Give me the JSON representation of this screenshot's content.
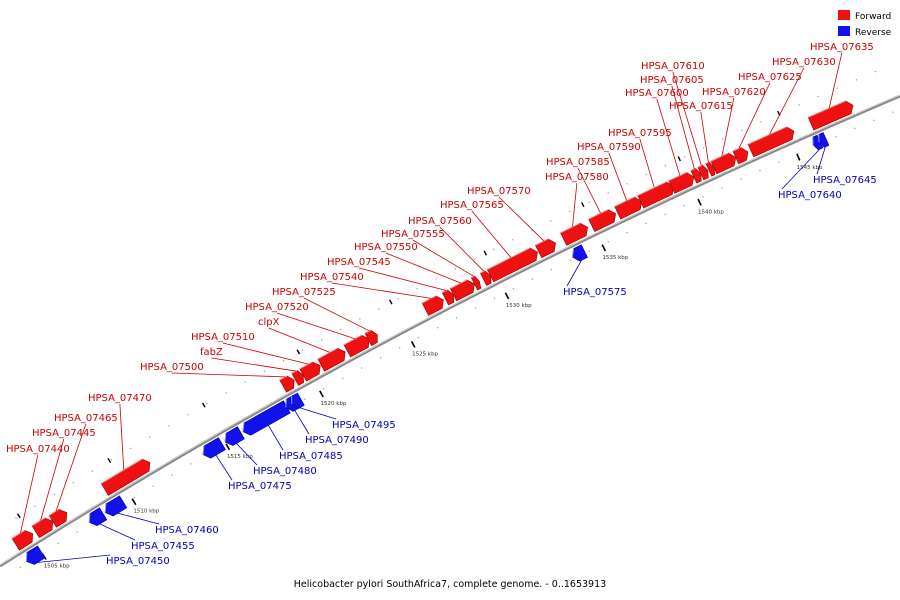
{
  "colors": {
    "forward": "#ee1111",
    "reverse": "#1111ee",
    "axis": "#888888",
    "label_forward": "#cc0000",
    "label_reverse": "#0000bb"
  },
  "legend": [
    {
      "label": "Forward",
      "strand": "forward"
    },
    {
      "label": "Reverse",
      "strand": "reverse"
    }
  ],
  "caption": "Helicobacter pylori SouthAfrica7, complete genome. - 0..1653913",
  "ticks": [
    "1505 kbp",
    "1510 kbp",
    "1515 kbp",
    "1520 kbp",
    "1525 kbp",
    "1530 kbp",
    "1535 kbp",
    "1540 kbp",
    "1545 kbp"
  ],
  "genes": [
    {
      "name": "HPSA_07440",
      "strand": "forward"
    },
    {
      "name": "HPSA_07445",
      "strand": "forward"
    },
    {
      "name": "HPSA_07450",
      "strand": "reverse"
    },
    {
      "name": "HPSA_07455",
      "strand": "reverse"
    },
    {
      "name": "HPSA_07460",
      "strand": "reverse"
    },
    {
      "name": "HPSA_07465",
      "strand": "forward"
    },
    {
      "name": "HPSA_07470",
      "strand": "forward"
    },
    {
      "name": "HPSA_07475",
      "strand": "reverse"
    },
    {
      "name": "HPSA_07480",
      "strand": "reverse"
    },
    {
      "name": "HPSA_07485",
      "strand": "reverse"
    },
    {
      "name": "HPSA_07490",
      "strand": "reverse"
    },
    {
      "name": "HPSA_07495",
      "strand": "reverse"
    },
    {
      "name": "HPSA_07500",
      "strand": "forward"
    },
    {
      "name": "fabZ",
      "strand": "forward"
    },
    {
      "name": "HPSA_07510",
      "strand": "forward"
    },
    {
      "name": "clpX",
      "strand": "forward"
    },
    {
      "name": "HPSA_07520",
      "strand": "forward"
    },
    {
      "name": "HPSA_07525",
      "strand": "forward"
    },
    {
      "name": "HPSA_07540",
      "strand": "forward"
    },
    {
      "name": "HPSA_07545",
      "strand": "forward"
    },
    {
      "name": "HPSA_07550",
      "strand": "forward"
    },
    {
      "name": "HPSA_07555",
      "strand": "forward"
    },
    {
      "name": "HPSA_07560",
      "strand": "forward"
    },
    {
      "name": "HPSA_07565",
      "strand": "forward"
    },
    {
      "name": "HPSA_07570",
      "strand": "forward"
    },
    {
      "name": "HPSA_07575",
      "strand": "reverse"
    },
    {
      "name": "HPSA_07580",
      "strand": "forward"
    },
    {
      "name": "HPSA_07585",
      "strand": "forward"
    },
    {
      "name": "HPSA_07590",
      "strand": "forward"
    },
    {
      "name": "HPSA_07595",
      "strand": "forward"
    },
    {
      "name": "HPSA_07600",
      "strand": "forward"
    },
    {
      "name": "HPSA_07605",
      "strand": "forward"
    },
    {
      "name": "HPSA_07610",
      "strand": "forward"
    },
    {
      "name": "HPSA_07615",
      "strand": "forward"
    },
    {
      "name": "HPSA_07620",
      "strand": "forward"
    },
    {
      "name": "HPSA_07625",
      "strand": "forward"
    },
    {
      "name": "HPSA_07630",
      "strand": "forward"
    },
    {
      "name": "HPSA_07635",
      "strand": "forward"
    },
    {
      "name": "HPSA_07640",
      "strand": "reverse"
    },
    {
      "name": "HPSA_07645",
      "strand": "reverse"
    }
  ]
}
